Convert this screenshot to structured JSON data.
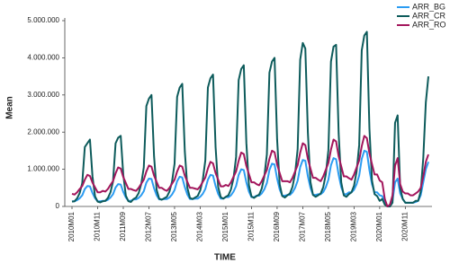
{
  "chart_data": {
    "type": "line",
    "x_label": "TIME",
    "y_label": "Mean",
    "categories": [
      "2010M01",
      null,
      null,
      null,
      null,
      null,
      null,
      null,
      null,
      null,
      "2010M11",
      null,
      null,
      null,
      null,
      null,
      null,
      null,
      null,
      null,
      "2011M09",
      null,
      null,
      null,
      null,
      null,
      null,
      null,
      null,
      null,
      "2012M07",
      null,
      null,
      null,
      null,
      null,
      null,
      null,
      null,
      null,
      "2013M05",
      null,
      null,
      null,
      null,
      null,
      null,
      null,
      null,
      null,
      "2014M03",
      null,
      null,
      null,
      null,
      null,
      null,
      null,
      null,
      null,
      "2015M01",
      null,
      null,
      null,
      null,
      null,
      null,
      null,
      null,
      null,
      "2015M11",
      null,
      null,
      null,
      null,
      null,
      null,
      null,
      null,
      null,
      "2016M09",
      null,
      null,
      null,
      null,
      null,
      null,
      null,
      null,
      null,
      "2017M07",
      null,
      null,
      null,
      null,
      null,
      null,
      null,
      null,
      null,
      "2018M05",
      null,
      null,
      null,
      null,
      null,
      null,
      null,
      null,
      null,
      "2019M03",
      null,
      null,
      null,
      null,
      null,
      null,
      null,
      null,
      null,
      "2020M01",
      null,
      null,
      null,
      null,
      null,
      null,
      null,
      null,
      null,
      "2020M11",
      null,
      null,
      null,
      null,
      null,
      null,
      null,
      null,
      null
    ],
    "series": [
      {
        "name": "ARR_BG",
        "color": "#2b9cf2",
        "values": [
          140000,
          140000,
          170000,
          220000,
          300000,
          470000,
          550000,
          540000,
          360000,
          220000,
          140000,
          140000,
          150000,
          150000,
          180000,
          240000,
          330000,
          510000,
          600000,
          590000,
          390000,
          240000,
          150000,
          150000,
          190000,
          190000,
          230000,
          300000,
          410000,
          640000,
          750000,
          740000,
          490000,
          300000,
          190000,
          190000,
          200000,
          200000,
          240000,
          320000,
          440000,
          680000,
          800000,
          780000,
          520000,
          320000,
          200000,
          200000,
          210000,
          210000,
          260000,
          340000,
          470000,
          720000,
          850000,
          830000,
          550000,
          340000,
          210000,
          210000,
          250000,
          250000,
          300000,
          400000,
          550000,
          850000,
          1000000,
          980000,
          650000,
          400000,
          250000,
          250000,
          290000,
          290000,
          350000,
          460000,
          630000,
          980000,
          1150000,
          1130000,
          750000,
          460000,
          290000,
          290000,
          310000,
          310000,
          380000,
          500000,
          690000,
          1060000,
          1250000,
          1230000,
          810000,
          500000,
          310000,
          310000,
          330000,
          330000,
          390000,
          520000,
          720000,
          1110000,
          1300000,
          1270000,
          850000,
          520000,
          330000,
          330000,
          380000,
          380000,
          450000,
          600000,
          830000,
          1280000,
          1500000,
          1470000,
          980000,
          600000,
          380000,
          380000,
          300000,
          280000,
          80000,
          0,
          20000,
          150000,
          650000,
          750000,
          350000,
          200000,
          100000,
          100000,
          100000,
          100000,
          120000,
          150000,
          300000,
          650000,
          1000000,
          1200000
        ]
      },
      {
        "name": "ARR_CR",
        "color": "#0d5b5b",
        "values": [
          130000,
          140000,
          220000,
          360000,
          630000,
          1600000,
          1700000,
          1800000,
          800000,
          270000,
          130000,
          110000,
          140000,
          150000,
          230000,
          380000,
          670000,
          1700000,
          1850000,
          1900000,
          850000,
          290000,
          140000,
          120000,
          200000,
          240000,
          360000,
          600000,
          1050000,
          2700000,
          2900000,
          3000000,
          1350000,
          450000,
          210000,
          180000,
          220000,
          260000,
          400000,
          660000,
          1150000,
          2950000,
          3200000,
          3300000,
          1480000,
          500000,
          230000,
          200000,
          240000,
          280000,
          430000,
          710000,
          1240000,
          3200000,
          3450000,
          3550000,
          1600000,
          530000,
          250000,
          210000,
          260000,
          300000,
          460000,
          760000,
          1330000,
          3400000,
          3700000,
          3800000,
          1710000,
          570000,
          270000,
          230000,
          280000,
          320000,
          480000,
          800000,
          1400000,
          3600000,
          3900000,
          4000000,
          1800000,
          600000,
          280000,
          240000,
          300000,
          350000,
          530000,
          880000,
          1540000,
          3950000,
          4400000,
          4250000,
          1980000,
          660000,
          310000,
          260000,
          300000,
          350000,
          520000,
          870000,
          1520000,
          3900000,
          4300000,
          4350000,
          1960000,
          650000,
          300000,
          260000,
          330000,
          380000,
          560000,
          940000,
          1650000,
          4200000,
          4600000,
          4700000,
          2100000,
          700000,
          330000,
          280000,
          150000,
          200000,
          50000,
          0,
          0,
          100000,
          2250000,
          2450000,
          500000,
          200000,
          100000,
          100000,
          100000,
          100000,
          150000,
          150000,
          400000,
          1300000,
          2800000,
          3500000
        ]
      },
      {
        "name": "ARR_RO",
        "color": "#a3165c",
        "values": [
          340000,
          320000,
          380000,
          470000,
          550000,
          720000,
          850000,
          820000,
          640000,
          510000,
          380000,
          380000,
          420000,
          400000,
          470000,
          580000,
          680000,
          890000,
          1050000,
          1020000,
          790000,
          630000,
          470000,
          470000,
          440000,
          420000,
          500000,
          610000,
          720000,
          940000,
          1100000,
          1070000,
          830000,
          660000,
          500000,
          500000,
          450000,
          420000,
          500000,
          610000,
          720000,
          940000,
          1100000,
          1070000,
          830000,
          660000,
          500000,
          500000,
          480000,
          460000,
          540000,
          660000,
          780000,
          1020000,
          1200000,
          1160000,
          900000,
          720000,
          540000,
          540000,
          580000,
          550000,
          650000,
          800000,
          940000,
          1230000,
          1450000,
          1410000,
          1090000,
          870000,
          650000,
          650000,
          600000,
          570000,
          680000,
          830000,
          980000,
          1280000,
          1500000,
          1460000,
          1130000,
          900000,
          680000,
          680000,
          680000,
          650000,
          770000,
          940000,
          1110000,
          1450000,
          1700000,
          1650000,
          1280000,
          1020000,
          770000,
          770000,
          720000,
          680000,
          810000,
          990000,
          1170000,
          1530000,
          1800000,
          1750000,
          1350000,
          1080000,
          810000,
          810000,
          760000,
          720000,
          860000,
          1050000,
          1240000,
          1620000,
          1900000,
          1840000,
          1430000,
          1140000,
          860000,
          860000,
          700000,
          650000,
          200000,
          0,
          50000,
          300000,
          1100000,
          1300000,
          600000,
          400000,
          350000,
          350000,
          300000,
          300000,
          350000,
          400000,
          500000,
          800000,
          1200000,
          1400000
        ]
      }
    ],
    "ylim": [
      0,
      5000000
    ],
    "yticks": [
      0,
      {
        "value": 1000000,
        "label": "1.000.000"
      },
      {
        "value": 2000000,
        "label": "2.000.000"
      },
      {
        "value": 3000000,
        "label": "3.000.000"
      },
      {
        "value": 4000000,
        "label": "4.000.000"
      },
      {
        "value": 5000000,
        "label": "5.000.000"
      }
    ],
    "grid": false,
    "legend": "upper right"
  }
}
